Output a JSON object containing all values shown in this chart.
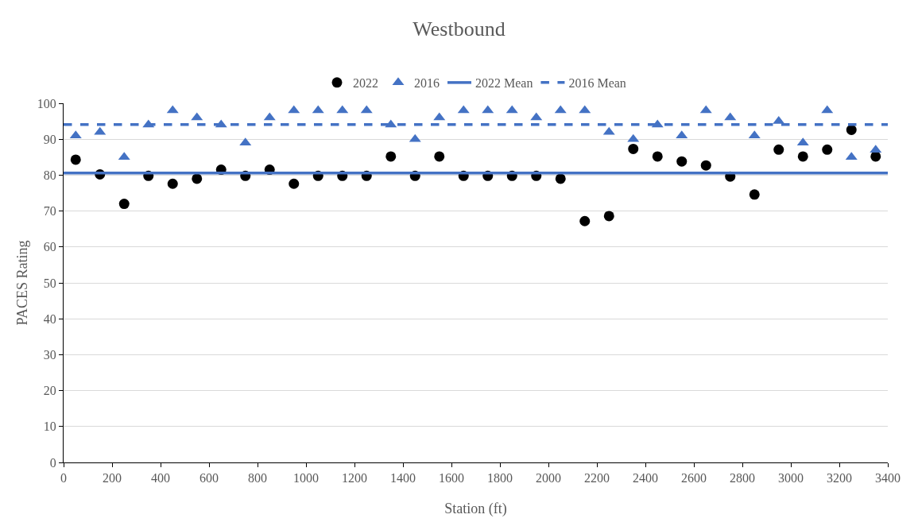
{
  "chart_data": {
    "type": "scatter",
    "title": "Westbound",
    "xlabel": "Station (ft)",
    "ylabel": "PACES Rating",
    "x": [
      50,
      150,
      250,
      350,
      450,
      550,
      650,
      750,
      850,
      950,
      1050,
      1150,
      1250,
      1350,
      1450,
      1550,
      1650,
      1750,
      1850,
      1950,
      2050,
      2150,
      2250,
      2350,
      2450,
      2550,
      2650,
      2750,
      2850,
      2950,
      3050,
      3150,
      3250,
      3350
    ],
    "series": [
      {
        "name": "2022",
        "color": "#000000",
        "marker": "circle",
        "values": [
          84.3,
          80.2,
          72,
          79.8,
          77.6,
          79,
          81.5,
          79.8,
          81.5,
          77.6,
          79.8,
          79.8,
          79.8,
          85.2,
          79.8,
          85.2,
          79.8,
          79.8,
          79.8,
          79.8,
          79,
          67.2,
          68.6,
          87.3,
          85.2,
          83.8,
          82.7,
          79.6,
          74.6,
          87.1,
          85.2,
          87.1,
          92.6,
          85.2
        ]
      },
      {
        "name": "2016",
        "color": "#4472c4",
        "marker": "triangle",
        "values": [
          91,
          92,
          85,
          94,
          98,
          96,
          94,
          89,
          96,
          98,
          98,
          98,
          98,
          94,
          90,
          96,
          98,
          98,
          98,
          96,
          98,
          98,
          92,
          90,
          94,
          91,
          98,
          96,
          91,
          95,
          89,
          98,
          85,
          87
        ]
      }
    ],
    "ref_lines": [
      {
        "axis": "y",
        "value": 80.6,
        "label": "2022 Mean",
        "color": "#4472c4",
        "line_style": "solid"
      },
      {
        "axis": "y",
        "value": 94.1,
        "label": "2016 Mean",
        "color": "#4472c4",
        "line_style": "dashed"
      }
    ],
    "xlim": [
      0,
      3400
    ],
    "xticks": [
      0,
      200,
      400,
      600,
      800,
      1000,
      1200,
      1400,
      1600,
      1800,
      2000,
      2200,
      2400,
      2600,
      2800,
      3000,
      3200,
      3400
    ],
    "ylim": [
      0,
      100
    ],
    "yticks": [
      0,
      10,
      20,
      30,
      40,
      50,
      60,
      70,
      80,
      90,
      100
    ],
    "grid": "y",
    "legend": "top"
  }
}
